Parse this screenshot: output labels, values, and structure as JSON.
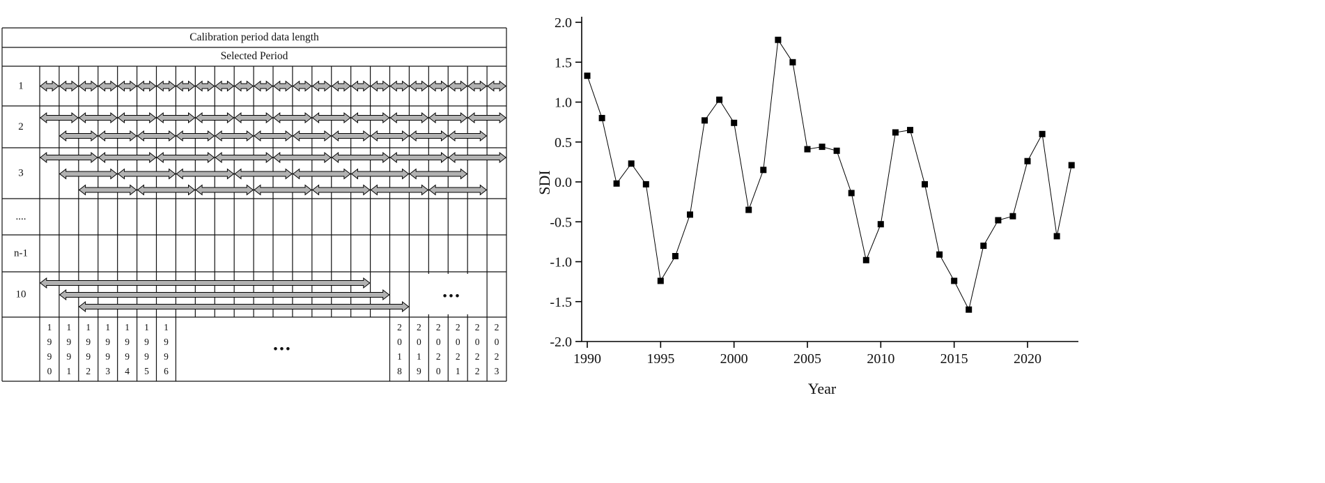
{
  "diagram": {
    "header_top": "Calibration period data length",
    "header_sub": "Selected Period",
    "columns": 24,
    "arrow_fill": "#b2b2b2",
    "arrow_stroke": "#000000",
    "rows": [
      {
        "label": "1",
        "lines": [
          {
            "start": 0,
            "span": 1,
            "count": 24
          }
        ]
      },
      {
        "label": "2",
        "lines": [
          {
            "start": 0,
            "span": 2,
            "count": 12
          },
          {
            "start": 1,
            "span": 2,
            "count": 11
          }
        ]
      },
      {
        "label": "3",
        "lines": [
          {
            "start": 0,
            "span": 3,
            "count": 8
          },
          {
            "start": 1,
            "span": 3,
            "count": 7
          },
          {
            "start": 2,
            "span": 3,
            "count": 7
          }
        ]
      },
      {
        "label": "....",
        "lines": []
      },
      {
        "label": "n-1",
        "lines": []
      },
      {
        "label": "10",
        "lines": [
          {
            "start": 0,
            "span": 17,
            "count": 1
          },
          {
            "start": 1,
            "span": 17,
            "count": 1
          },
          {
            "start": 2,
            "span": 17,
            "count": 1
          }
        ],
        "ellipsis": "•••"
      }
    ],
    "year_labels_left": [
      "1990",
      "1991",
      "1992",
      "1993",
      "1994",
      "1995",
      "1996"
    ],
    "year_labels_right": [
      "2018",
      "2019",
      "2020",
      "2021",
      "2022",
      "2023"
    ],
    "middle_ellipsis": "•••"
  },
  "chart_data": {
    "type": "line",
    "title": "",
    "xlabel": "Year",
    "ylabel": "SDI",
    "marker": "square",
    "line_color": "#000000",
    "marker_color": "#000000",
    "grid": false,
    "legend": false,
    "xlim": [
      1988.5,
      2024.5
    ],
    "ylim": [
      -2.0,
      2.0
    ],
    "x_ticks": [
      1990,
      1995,
      2000,
      2005,
      2010,
      2015,
      2020
    ],
    "y_ticks": [
      2.0,
      1.5,
      1.0,
      0.5,
      0.0,
      -0.5,
      -1.0,
      -1.5,
      -2.0
    ],
    "x": [
      1990,
      1991,
      1992,
      1993,
      1994,
      1995,
      1996,
      1997,
      1998,
      1999,
      2000,
      2001,
      2002,
      2003,
      2004,
      2005,
      2006,
      2007,
      2008,
      2009,
      2010,
      2011,
      2012,
      2013,
      2014,
      2015,
      2016,
      2017,
      2018,
      2019,
      2020,
      2021,
      2022,
      2023
    ],
    "y": [
      1.33,
      0.8,
      -0.02,
      0.23,
      -0.03,
      -1.24,
      -0.93,
      -0.41,
      0.77,
      1.03,
      0.74,
      -0.35,
      0.15,
      1.78,
      1.5,
      0.41,
      0.44,
      0.39,
      -0.14,
      -0.98,
      -0.53,
      0.62,
      0.65,
      -0.03,
      -0.91,
      -1.24,
      -1.6,
      -0.8,
      -0.48,
      -0.43,
      0.26,
      0.6,
      -0.68,
      0.21
    ]
  }
}
